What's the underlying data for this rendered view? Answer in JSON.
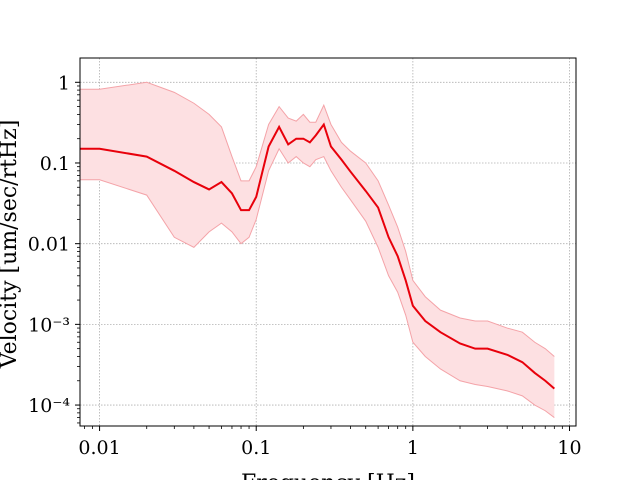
{
  "chart_data": {
    "type": "line",
    "title": "",
    "xlabel": "Frequency [Hz]",
    "ylabel": "Velocity [um/sec/rtHz]",
    "xscale": "log",
    "yscale": "log",
    "xlim": [
      0.0075,
      11
    ],
    "ylim": [
      5.5e-05,
      2.0
    ],
    "grid": true,
    "legend": "none",
    "x_ticks": [
      {
        "value": 0.01,
        "label": "0.01"
      },
      {
        "value": 0.1,
        "label": "0.1"
      },
      {
        "value": 1,
        "label": "1"
      },
      {
        "value": 10,
        "label": "10"
      }
    ],
    "y_ticks": [
      {
        "value": 0.0001,
        "label": "10⁻⁴"
      },
      {
        "value": 0.001,
        "label": "10⁻³"
      },
      {
        "value": 0.01,
        "label": "0.01"
      },
      {
        "value": 0.1,
        "label": "0.1"
      },
      {
        "value": 1,
        "label": "1"
      }
    ],
    "colors": {
      "line": "#e8000b",
      "band_fill": "#fde0e2",
      "band_edge": "#f4a3a8"
    },
    "series": [
      {
        "role": "median",
        "x": [
          0.0075,
          0.01,
          0.02,
          0.03,
          0.04,
          0.05,
          0.06,
          0.07,
          0.08,
          0.09,
          0.1,
          0.12,
          0.14,
          0.16,
          0.18,
          0.2,
          0.22,
          0.24,
          0.27,
          0.3,
          0.35,
          0.4,
          0.5,
          0.6,
          0.7,
          0.8,
          0.9,
          1.0,
          1.2,
          1.5,
          2.0,
          2.5,
          3.0,
          4.0,
          5.0,
          6.0,
          7.0,
          8.0
        ],
        "y": [
          0.15,
          0.15,
          0.12,
          0.08,
          0.058,
          0.047,
          0.058,
          0.042,
          0.026,
          0.026,
          0.038,
          0.16,
          0.28,
          0.17,
          0.2,
          0.2,
          0.18,
          0.22,
          0.3,
          0.16,
          0.11,
          0.078,
          0.045,
          0.028,
          0.012,
          0.007,
          0.0035,
          0.0017,
          0.0011,
          0.0008,
          0.00058,
          0.0005,
          0.0005,
          0.00042,
          0.00034,
          0.00025,
          0.0002,
          0.00016
        ]
      },
      {
        "role": "upper",
        "x": [
          0.0075,
          0.01,
          0.02,
          0.03,
          0.04,
          0.05,
          0.06,
          0.07,
          0.08,
          0.09,
          0.1,
          0.12,
          0.14,
          0.16,
          0.18,
          0.2,
          0.22,
          0.24,
          0.27,
          0.3,
          0.35,
          0.4,
          0.5,
          0.6,
          0.7,
          0.8,
          0.9,
          1.0,
          1.2,
          1.5,
          2.0,
          2.5,
          3.0,
          4.0,
          5.0,
          6.0,
          7.0,
          8.0
        ],
        "y": [
          0.82,
          0.82,
          1.0,
          0.75,
          0.55,
          0.4,
          0.28,
          0.12,
          0.06,
          0.06,
          0.09,
          0.3,
          0.5,
          0.36,
          0.33,
          0.4,
          0.32,
          0.32,
          0.52,
          0.3,
          0.18,
          0.14,
          0.1,
          0.06,
          0.03,
          0.016,
          0.008,
          0.0035,
          0.0022,
          0.0015,
          0.0012,
          0.0011,
          0.0011,
          0.0009,
          0.0008,
          0.0006,
          0.0005,
          0.0004
        ]
      },
      {
        "role": "lower",
        "x": [
          0.0075,
          0.01,
          0.02,
          0.03,
          0.04,
          0.05,
          0.06,
          0.07,
          0.08,
          0.09,
          0.1,
          0.12,
          0.14,
          0.16,
          0.18,
          0.2,
          0.22,
          0.24,
          0.27,
          0.3,
          0.35,
          0.4,
          0.5,
          0.6,
          0.7,
          0.8,
          0.9,
          1.0,
          1.2,
          1.5,
          2.0,
          2.5,
          3.0,
          4.0,
          5.0,
          6.0,
          7.0,
          8.0
        ],
        "y": [
          0.062,
          0.062,
          0.04,
          0.012,
          0.009,
          0.014,
          0.018,
          0.014,
          0.01,
          0.012,
          0.02,
          0.08,
          0.15,
          0.1,
          0.12,
          0.1,
          0.09,
          0.11,
          0.12,
          0.08,
          0.05,
          0.035,
          0.019,
          0.009,
          0.004,
          0.0025,
          0.0013,
          0.0006,
          0.0004,
          0.00028,
          0.0002,
          0.00018,
          0.00017,
          0.00015,
          0.00013,
          0.0001,
          8.5e-05,
          7e-05
        ]
      }
    ]
  }
}
